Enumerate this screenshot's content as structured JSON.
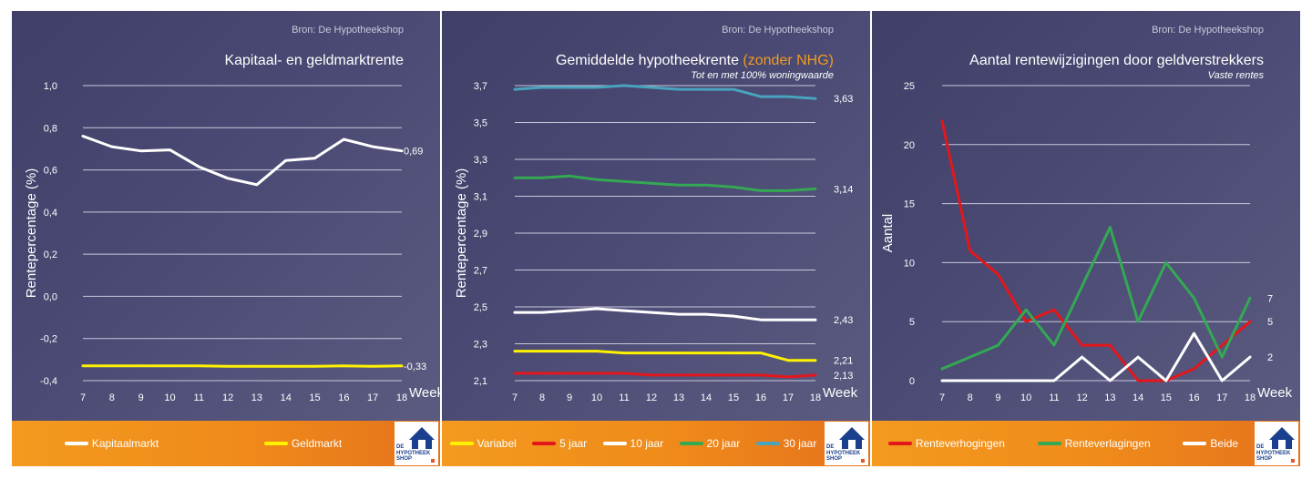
{
  "panels": [
    {
      "source": "Bron: De Hypotheekshop",
      "title": "Kapitaal- en geldmarktrente",
      "subtitle": "",
      "chart_data": {
        "type": "line",
        "title": "Kapitaal- en geldmarktrente",
        "xlabel": "Week",
        "ylabel": "Rentepercentage (%)",
        "x": [
          7,
          8,
          9,
          10,
          11,
          12,
          13,
          14,
          15,
          16,
          17,
          18
        ],
        "ylim": [
          -0.4,
          1.0
        ],
        "yticks": [
          "-0,4",
          "-0,2",
          "0,0",
          "0,2",
          "0,4",
          "0,6",
          "0,8",
          "1,0"
        ],
        "grid": true,
        "legend_position": "bottom",
        "series": [
          {
            "name": "Kapitaalmarkt",
            "color": "#ffffff",
            "values": [
              0.76,
              0.71,
              0.69,
              0.695,
              0.615,
              0.56,
              0.53,
              0.645,
              0.655,
              0.745,
              0.71,
              0.69
            ],
            "end_label": "0,69"
          },
          {
            "name": "Geldmarkt",
            "color": "#fff200",
            "values": [
              -0.33,
              -0.33,
              -0.33,
              -0.33,
              -0.33,
              -0.332,
              -0.332,
              -0.332,
              -0.332,
              -0.33,
              -0.332,
              -0.33
            ],
            "end_label": "-0,33"
          }
        ]
      },
      "logo_text": [
        "DE",
        "HYPOTHEEK",
        "SHOP"
      ]
    },
    {
      "source": "Bron: De Hypotheekshop",
      "title": "Gemiddelde hypotheekrente ",
      "title_highlight": "(zonder NHG)",
      "subtitle": "Tot en met 100% woningwaarde",
      "chart_data": {
        "type": "line",
        "title": "Gemiddelde hypotheekrente (zonder NHG)",
        "xlabel": "Week",
        "ylabel": "Rentepercentage (%)",
        "x": [
          7,
          8,
          9,
          10,
          11,
          12,
          13,
          14,
          15,
          16,
          17,
          18
        ],
        "ylim": [
          2.1,
          3.7
        ],
        "yticks": [
          "2,1",
          "2,3",
          "2,5",
          "2,7",
          "2,9",
          "3,1",
          "3,3",
          "3,5",
          "3,7"
        ],
        "grid": true,
        "legend_position": "bottom",
        "series": [
          {
            "name": "Variabel",
            "color": "#fff200",
            "values": [
              2.26,
              2.26,
              2.26,
              2.26,
              2.25,
              2.25,
              2.25,
              2.25,
              2.25,
              2.25,
              2.21,
              2.21
            ],
            "end_label": "2,21"
          },
          {
            "name": "5 jaar",
            "color": "#e3171b",
            "values": [
              2.14,
              2.14,
              2.14,
              2.14,
              2.14,
              2.13,
              2.13,
              2.13,
              2.13,
              2.13,
              2.12,
              2.13
            ],
            "end_label": "2,13"
          },
          {
            "name": "10 jaar",
            "color": "#ffffff",
            "values": [
              2.47,
              2.47,
              2.48,
              2.49,
              2.48,
              2.47,
              2.46,
              2.46,
              2.45,
              2.43,
              2.43,
              2.43
            ],
            "end_label": "2,43"
          },
          {
            "name": "20 jaar",
            "color": "#34a853",
            "values": [
              3.2,
              3.2,
              3.21,
              3.19,
              3.18,
              3.17,
              3.16,
              3.16,
              3.15,
              3.13,
              3.13,
              3.14
            ],
            "end_label": "3,14"
          },
          {
            "name": "30 jaar",
            "color": "#4aa3bd",
            "values": [
              3.68,
              3.69,
              3.69,
              3.69,
              3.7,
              3.69,
              3.68,
              3.68,
              3.68,
              3.64,
              3.64,
              3.63
            ],
            "end_label": "3,63"
          }
        ]
      },
      "logo_text": [
        "DE",
        "HYPOTHEEK",
        "SHOP"
      ]
    },
    {
      "source": "Bron: De Hypotheekshop",
      "title": "Aantal rentewijzigingen door geldverstrekkers",
      "subtitle": "Vaste rentes",
      "chart_data": {
        "type": "line",
        "title": "Aantal rentewijzigingen door geldverstrekkers",
        "xlabel": "Week",
        "ylabel": "Aantal",
        "x": [
          7,
          8,
          9,
          10,
          11,
          12,
          13,
          14,
          15,
          16,
          17,
          18
        ],
        "ylim": [
          0,
          25
        ],
        "yticks": [
          "0",
          "5",
          "10",
          "15",
          "20",
          "25"
        ],
        "grid": true,
        "legend_position": "bottom",
        "series": [
          {
            "name": "Renteverhogingen",
            "color": "#e3171b",
            "values": [
              22,
              11,
              9,
              5,
              6,
              3,
              3,
              0,
              0,
              1,
              3,
              5
            ],
            "end_label": "5"
          },
          {
            "name": "Renteverlagingen",
            "color": "#34a853",
            "values": [
              1,
              2,
              3,
              6,
              3,
              8,
              13,
              5,
              10,
              7,
              2,
              7
            ],
            "end_label": "7"
          },
          {
            "name": "Beide",
            "color": "#ffffff",
            "values": [
              0,
              0,
              0,
              0,
              0,
              2,
              0,
              2,
              0,
              4,
              0,
              2
            ],
            "end_label": "2"
          }
        ]
      },
      "logo_text": [
        "DE",
        "HYPOTHEEK",
        "SHOP"
      ]
    }
  ]
}
